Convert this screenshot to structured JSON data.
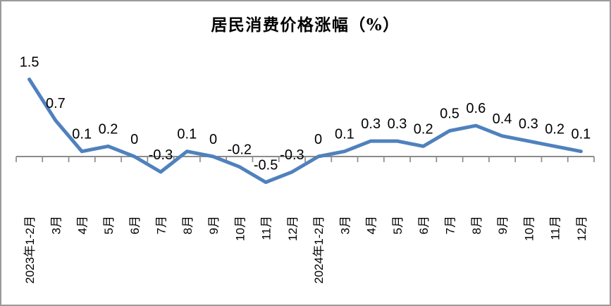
{
  "chart_data": {
    "type": "line",
    "title": "居民消费价格涨幅（%）",
    "xlabel": "",
    "ylabel": "",
    "categories": [
      "2023年1-2月",
      "3月",
      "4月",
      "5月",
      "6月",
      "7月",
      "8月",
      "9月",
      "10月",
      "11月",
      "12月",
      "2024年1-2月",
      "3月",
      "4月",
      "5月",
      "6月",
      "7月",
      "8月",
      "9月",
      "10月",
      "11月",
      "12月"
    ],
    "values": [
      1.5,
      0.7,
      0.1,
      0.2,
      0,
      -0.3,
      0.1,
      0,
      -0.2,
      -0.5,
      -0.3,
      0,
      0.1,
      0.3,
      0.3,
      0.2,
      0.5,
      0.6,
      0.4,
      0.3,
      0.2,
      0.1
    ],
    "point_labels": [
      "1.5",
      "0.7",
      "0.1",
      "0.2",
      "0",
      "-0.3",
      "0.1",
      "0",
      "-0.2",
      "-0.5",
      "-0.3",
      "0",
      "0.1",
      "0.3",
      "0.3",
      "0.2",
      "0.5",
      "0.6",
      "0.4",
      "0.3",
      "0.2",
      "0.1"
    ],
    "data_min": -0.5,
    "data_max": 1.5,
    "grid": false,
    "legend": false,
    "y_axis_visible": false,
    "x_tick_style": "between-categories",
    "line_color": "#4F81BD",
    "axis_color": "#8C8C8C",
    "label_color": "#000000",
    "border_color": "#9A9A9A",
    "background_color": "#FFFFFF"
  }
}
